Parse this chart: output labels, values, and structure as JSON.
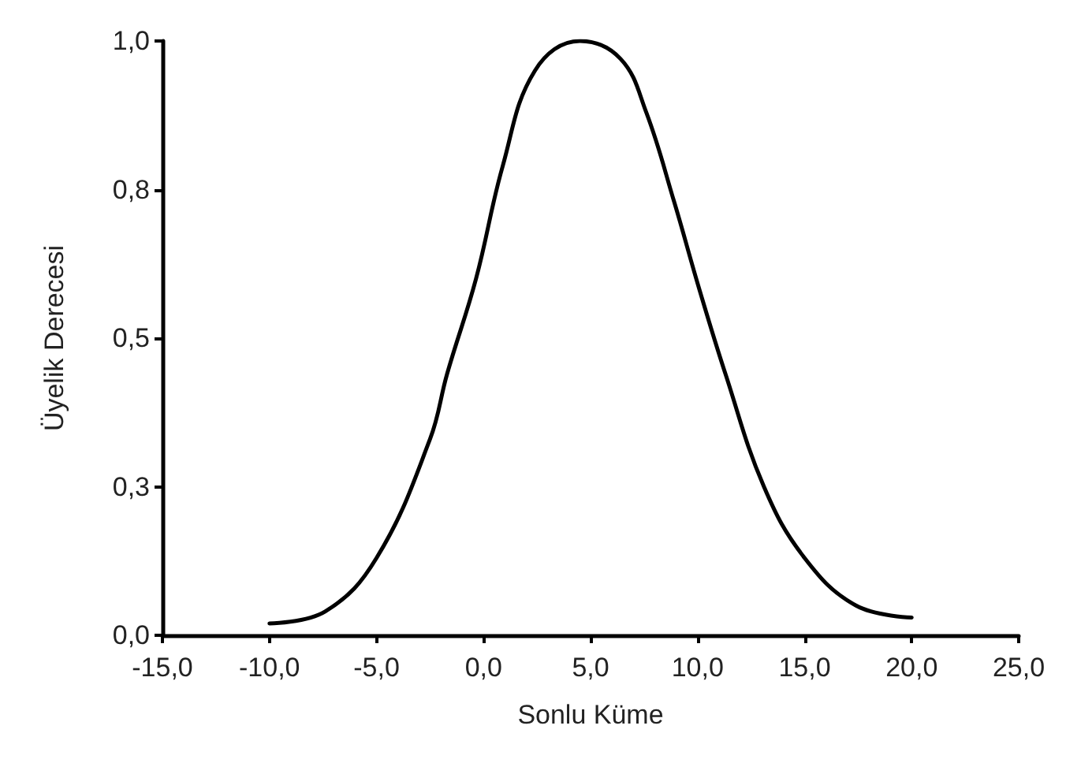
{
  "chart_data": {
    "type": "line",
    "xlabel": "Sonlu Küme",
    "ylabel": "Üyelik Derecesi",
    "x": [
      -10,
      -7.4,
      -5,
      -2.5,
      -1.7,
      -0.35,
      0.9,
      2.4,
      4.5,
      6.4,
      7.6,
      8.9,
      10.1,
      11.3,
      13.1,
      15,
      17.4,
      20
    ],
    "series": [
      {
        "color": "#000000",
        "values": [
          0.02,
          0.04,
          0.13,
          0.33,
          0.44,
          0.6,
          0.79,
          0.95,
          1.0,
          0.97,
          0.88,
          0.73,
          0.58,
          0.44,
          0.25,
          0.13,
          0.05,
          0.03
        ]
      }
    ],
    "xlim": [
      -15,
      25
    ],
    "xticks": [
      {
        "value": -15,
        "label": "-15,0"
      },
      {
        "value": -10,
        "label": "-10,0"
      },
      {
        "value": -5,
        "label": "-5,0"
      },
      {
        "value": 0,
        "label": "0,0"
      },
      {
        "value": 5,
        "label": "5,0"
      },
      {
        "value": 10,
        "label": "10,0"
      },
      {
        "value": 15,
        "label": "15,0"
      },
      {
        "value": 20,
        "label": "20,0"
      },
      {
        "value": 25,
        "label": "25,0"
      }
    ],
    "ylim": [
      0,
      1
    ],
    "yticks": [
      {
        "value": 0,
        "label": "0,0"
      },
      {
        "value": 0.25,
        "label": "0,3"
      },
      {
        "value": 0.5,
        "label": "0,5"
      },
      {
        "value": 0.75,
        "label": "0,8"
      },
      {
        "value": 1,
        "label": "1,0"
      }
    ],
    "marker": "none",
    "line_style": "solid"
  }
}
